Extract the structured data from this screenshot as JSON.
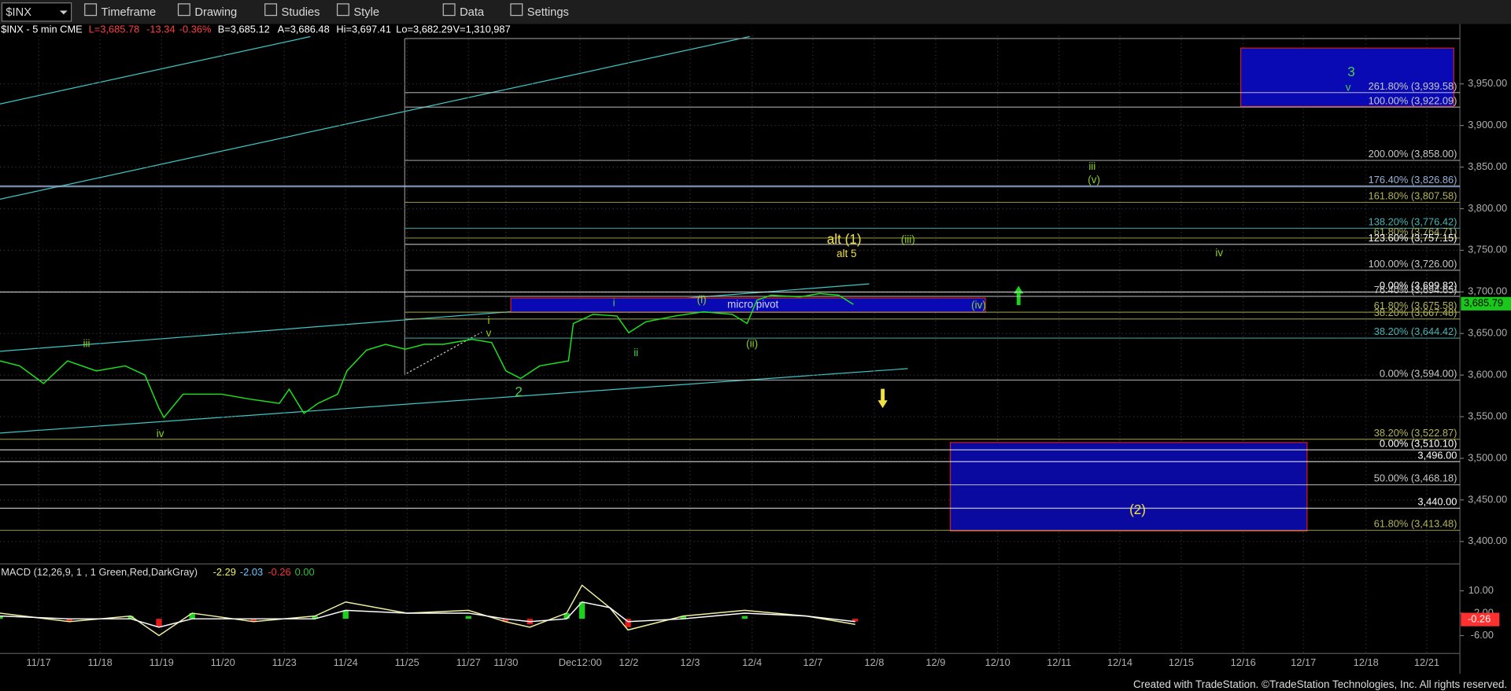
{
  "toolbar": {
    "symbol": "$INX",
    "buttons": [
      "Timeframe",
      "Drawing",
      "Studies",
      "Style",
      "Data",
      "Settings"
    ]
  },
  "header": {
    "symbol_info": "$INX - 5 min CME",
    "last": "L=3,685.78",
    "change": "-13.34",
    "change_pct": "-0.36%",
    "bid": "B=3,685.12",
    "ask": "A=3,686.48",
    "high": "Hi=3,697.41",
    "low": "Lo=3,682.29",
    "volume": "V=1,310,987"
  },
  "chart_data": [
    {
      "type": "line",
      "xlim": [
        -0.63,
        23.15
      ],
      "ylim": [
        3373,
        4008
      ],
      "grid": true,
      "xticks": [
        {
          "value": 0,
          "label": "11/17"
        },
        {
          "value": 1,
          "label": "11/18"
        },
        {
          "value": 2,
          "label": "11/19"
        },
        {
          "value": 3,
          "label": "11/20"
        },
        {
          "value": 4,
          "label": "11/23"
        },
        {
          "value": 5,
          "label": "11/24"
        },
        {
          "value": 6,
          "label": "11/25"
        },
        {
          "value": 7,
          "label": "11/27"
        },
        {
          "value": 7.61,
          "label": "11/30"
        },
        {
          "value": 8.82,
          "label": "Dec12:00"
        },
        {
          "value": 9.61,
          "label": "12/2"
        },
        {
          "value": 10.61,
          "label": "12/3"
        },
        {
          "value": 11.62,
          "label": "12/4"
        },
        {
          "value": 12.61,
          "label": "12/7"
        },
        {
          "value": 13.61,
          "label": "12/8"
        },
        {
          "value": 14.61,
          "label": "12/9"
        },
        {
          "value": 15.62,
          "label": "12/10"
        },
        {
          "value": 16.62,
          "label": "12/11"
        },
        {
          "value": 17.61,
          "label": "12/14"
        },
        {
          "value": 18.61,
          "label": "12/15"
        },
        {
          "value": 19.62,
          "label": "12/16"
        },
        {
          "value": 20.6,
          "label": "12/17"
        },
        {
          "value": 21.62,
          "label": "12/18"
        },
        {
          "value": 22.61,
          "label": "12/21"
        }
      ],
      "yticks": [
        {
          "value": 3950,
          "label": "3,950.00"
        },
        {
          "value": 3900,
          "label": "3,900.00"
        },
        {
          "value": 3850,
          "label": "3,850.00"
        },
        {
          "value": 3800,
          "label": "3,800.00"
        },
        {
          "value": 3750,
          "label": "3,750.00"
        },
        {
          "value": 3700,
          "label": "3,700.00"
        },
        {
          "value": 3650,
          "label": "3,650.00"
        },
        {
          "value": 3600,
          "label": "3,600.00"
        },
        {
          "value": 3550,
          "label": "3,550.00"
        },
        {
          "value": 3500,
          "label": "3,500.00"
        },
        {
          "value": 3450,
          "label": "3,450.00"
        },
        {
          "value": 3400,
          "label": "3,400.00"
        }
      ],
      "series": [
        {
          "color": "#19e619",
          "x": [
            -0.63,
            -0.31,
            0.08,
            0.47,
            0.94,
            1.41,
            1.73,
            1.96,
            2.04,
            2.35,
            2.98,
            3.45,
            3.92,
            4.08,
            4.32,
            4.55,
            4.87,
            5.02,
            5.34,
            5.65,
            5.97,
            6.28,
            6.59,
            7.06,
            7.38,
            7.61,
            7.85,
            8.16,
            8.63,
            8.71,
            9.03,
            9.42,
            9.61,
            9.89,
            10.36,
            10.83,
            11.3,
            11.54,
            11.7,
            11.93,
            12.4,
            12.72,
            13.03,
            13.27
          ],
          "values": [
            3617,
            3611,
            3590,
            3617,
            3605,
            3611,
            3600,
            3560,
            3549,
            3577,
            3577,
            3571,
            3566,
            3583,
            3554,
            3566,
            3577,
            3605,
            3630,
            3637,
            3631,
            3637,
            3637,
            3643,
            3639,
            3605,
            3596,
            3611,
            3617,
            3662,
            3673,
            3671,
            3651,
            3664,
            3671,
            3676,
            3673,
            3662,
            3690,
            3696,
            3694,
            3698,
            3696,
            3685
          ]
        }
      ],
      "last_value": {
        "value": 3685.79,
        "label": "3,685.79",
        "color": "#19c819"
      },
      "fib_start": 5.97,
      "fib_levels": [
        {
          "label": "261.80% (3,939.58)",
          "value": 3939.58,
          "color": "#c8c8c8",
          "extend_left": false
        },
        {
          "label": "100.00% (3,922.09)",
          "value": 3922.09,
          "color": "#c8c8c8",
          "extend_left": false
        },
        {
          "label": "200.00% (3,858.00)",
          "value": 3858,
          "color": "#c8c8c8",
          "extend_left": false
        },
        {
          "label": "176.40% (3,826.86)",
          "value": 3826.86,
          "color": "#9ab4d8",
          "extend_left": true
        },
        {
          "label": "161.80% (3,807.58)",
          "value": 3807.58,
          "color": "#b4b45a",
          "extend_left": false
        },
        {
          "label": "138.20% (3,776.42)",
          "value": 3776.42,
          "color": "#48b4b4",
          "extend_left": false
        },
        {
          "label": "61.80% (3,764.71)",
          "value": 3764.71,
          "color": "#b4b45a",
          "extend_left": false
        },
        {
          "label": "123.60% (3,757.15)",
          "value": 3757.15,
          "color": "#ffffff",
          "extend_left": false
        },
        {
          "label": "100.00% (3,726.00)",
          "value": 3726,
          "color": "#c8c8c8",
          "extend_left": false
        },
        {
          "label": "0.00% (3,699.82)",
          "value": 3699.82,
          "color": "#ffffff",
          "extend_left": true
        },
        {
          "label": "76.40% (3,694.65)",
          "value": 3694.65,
          "color": "#c8c8c8",
          "extend_left": false
        },
        {
          "label": "61.80% (3,675.58)",
          "value": 3675.58,
          "color": "#b4b45a",
          "extend_left": false
        },
        {
          "label": "38.20% (3,667.48)",
          "value": 3667.48,
          "color": "#b4b45a",
          "extend_left": false
        },
        {
          "label": "38.20% (3,644.42)",
          "value": 3644.42,
          "color": "#48b4b4",
          "extend_left": false
        },
        {
          "label": "0.00% (3,594.00)",
          "value": 3594,
          "color": "#c8c8c8",
          "extend_left": true
        },
        {
          "label": "38.20% (3,522.87)",
          "value": 3522.87,
          "color": "#b4b45a",
          "extend_left": true
        },
        {
          "label": "0.00% (3,510.10)",
          "value": 3510.1,
          "color": "#ffffff",
          "extend_left": true
        },
        {
          "label": "3,496.00",
          "value": 3496,
          "color": "#ffffff",
          "extend_left": true
        },
        {
          "label": "50.00% (3,468.18)",
          "value": 3468.18,
          "color": "#c8c8c8",
          "extend_left": true
        },
        {
          "label": "3,440.00",
          "value": 3440,
          "color": "#ffffff",
          "extend_left": true
        },
        {
          "label": "61.80% (3,413.48)",
          "value": 3413.48,
          "color": "#b4b45a",
          "extend_left": true
        }
      ],
      "boxes": [
        {
          "x": [
            19.58,
            23.05
          ],
          "y": [
            3922.8,
            3993
          ],
          "fill": "#0a0ab4",
          "stroke": "#c81e1e"
        },
        {
          "x": [
            14.85,
            20.66
          ],
          "y": [
            3412.5,
            3519
          ],
          "fill": "#0a0aa0",
          "stroke": "#c81e1e"
        },
        {
          "x": [
            7.69,
            15.42
          ],
          "y": [
            3675.6,
            3692.6
          ],
          "fill": "#0a0ab4",
          "stroke": "#c81e1e",
          "label": "micro pivot"
        }
      ],
      "annotations": [
        {
          "text": "3",
          "x": 21.38,
          "y": 3963.6,
          "color": "#4ccc4c"
        },
        {
          "text": "v",
          "x": 21.33,
          "y": 3945,
          "color": "#4ccc4c"
        },
        {
          "text": "iii",
          "x": 17.16,
          "y": 3850,
          "color": "#8cd21e"
        },
        {
          "text": "(v)",
          "x": 17.19,
          "y": 3834,
          "color": "#8cd21e"
        },
        {
          "text": "alt (1)",
          "x": 13.12,
          "y": 3762,
          "color": "#f0e040"
        },
        {
          "text": "alt 5",
          "x": 13.16,
          "y": 3745,
          "color": "#f0e040"
        },
        {
          "text": "(iii)",
          "x": 14.16,
          "y": 3762,
          "color": "#8cd21e"
        },
        {
          "text": "iv",
          "x": 19.23,
          "y": 3746,
          "color": "#8cd21e"
        },
        {
          "text": "i",
          "x": 9.37,
          "y": 3686,
          "color": "#4ccc4c"
        },
        {
          "text": "(i)",
          "x": 10.8,
          "y": 3690,
          "color": "#8cd21e"
        },
        {
          "text": "(iv)",
          "x": 15.31,
          "y": 3683.5,
          "color": "#8cd21e"
        },
        {
          "text": "i",
          "x": 7.33,
          "y": 3665,
          "color": "#8cd21e"
        },
        {
          "text": "v",
          "x": 7.33,
          "y": 3650,
          "color": "#8cd21e"
        },
        {
          "text": "iii",
          "x": 0.78,
          "y": 3637,
          "color": "#8cd21e"
        },
        {
          "text": "ii",
          "x": 9.73,
          "y": 3626,
          "color": "#4ccc4c"
        },
        {
          "text": "(ii)",
          "x": 11.62,
          "y": 3637,
          "color": "#8cd21e"
        },
        {
          "text": "2",
          "x": 7.82,
          "y": 3579,
          "color": "#4ccc4c"
        },
        {
          "text": "iv",
          "x": 1.98,
          "y": 3529,
          "color": "#8cd21e"
        },
        {
          "text": "(2)",
          "x": 17.9,
          "y": 3437,
          "color": "#f0e040"
        }
      ]
    },
    {
      "type": "line",
      "title": "MACD (12,26,9, 1 , 1 Green,Red,DarkGray)",
      "xlim": [
        -0.63,
        23.15
      ],
      "ylim": [
        -12.4,
        19.6
      ],
      "yticks": [
        {
          "value": 10,
          "label": "10.00"
        },
        {
          "value": 2,
          "label": "2.00"
        },
        {
          "value": -6,
          "label": "-6.00"
        }
      ],
      "readouts": [
        -2.29,
        -2.03,
        -0.26,
        0
      ],
      "readout_labels": [
        "-2.29",
        "-2.03",
        "-0.26",
        "0.00"
      ],
      "readout_colors": [
        "#f0f060",
        "#6ec8ff",
        "#ff3030",
        "#30c030"
      ],
      "series": [
        {
          "color": "#f0f0a0",
          "x": [
            -0.63,
            0.5,
            1.5,
            1.96,
            2.5,
            3.5,
            4.5,
            5,
            6,
            7,
            7.6,
            8,
            8.6,
            8.85,
            9.3,
            9.6,
            10.5,
            11.5,
            12.5,
            13.3
          ],
          "values": [
            2,
            -1,
            1,
            -6,
            2,
            -1,
            1,
            6,
            2,
            3,
            -1,
            -3,
            2,
            12,
            4,
            -4,
            1,
            3,
            1,
            -2
          ]
        },
        {
          "color": "#ffffff",
          "x": [
            -0.63,
            0.5,
            1.5,
            1.96,
            2.5,
            3.5,
            4.5,
            5,
            6,
            7,
            7.6,
            8,
            8.6,
            8.85,
            9.3,
            9.6,
            10.5,
            11.5,
            12.5,
            13.3
          ],
          "values": [
            1,
            0,
            0,
            -3,
            0,
            0,
            0,
            3,
            2,
            2,
            0,
            -1,
            0,
            6,
            4,
            -1,
            0,
            2,
            1,
            -1
          ]
        }
      ],
      "histogram": {
        "x": [
          -0.63,
          0.5,
          1.5,
          1.96,
          2.5,
          3.5,
          4.5,
          5,
          6,
          7,
          7.6,
          8,
          8.6,
          8.85,
          9.3,
          9.6,
          10.5,
          11.5,
          12.5,
          13.3
        ],
        "values": [
          1,
          -1,
          1,
          -3,
          2,
          -1,
          1,
          3,
          0,
          1,
          -1,
          -2,
          2,
          6,
          0,
          -3,
          1,
          1,
          0,
          -1
        ],
        "pos_color": "#19d219",
        "neg_color": "#e61919"
      }
    }
  ],
  "footer": "Created with TradeStation. ©TradeStation Technologies, Inc. All rights reserved."
}
